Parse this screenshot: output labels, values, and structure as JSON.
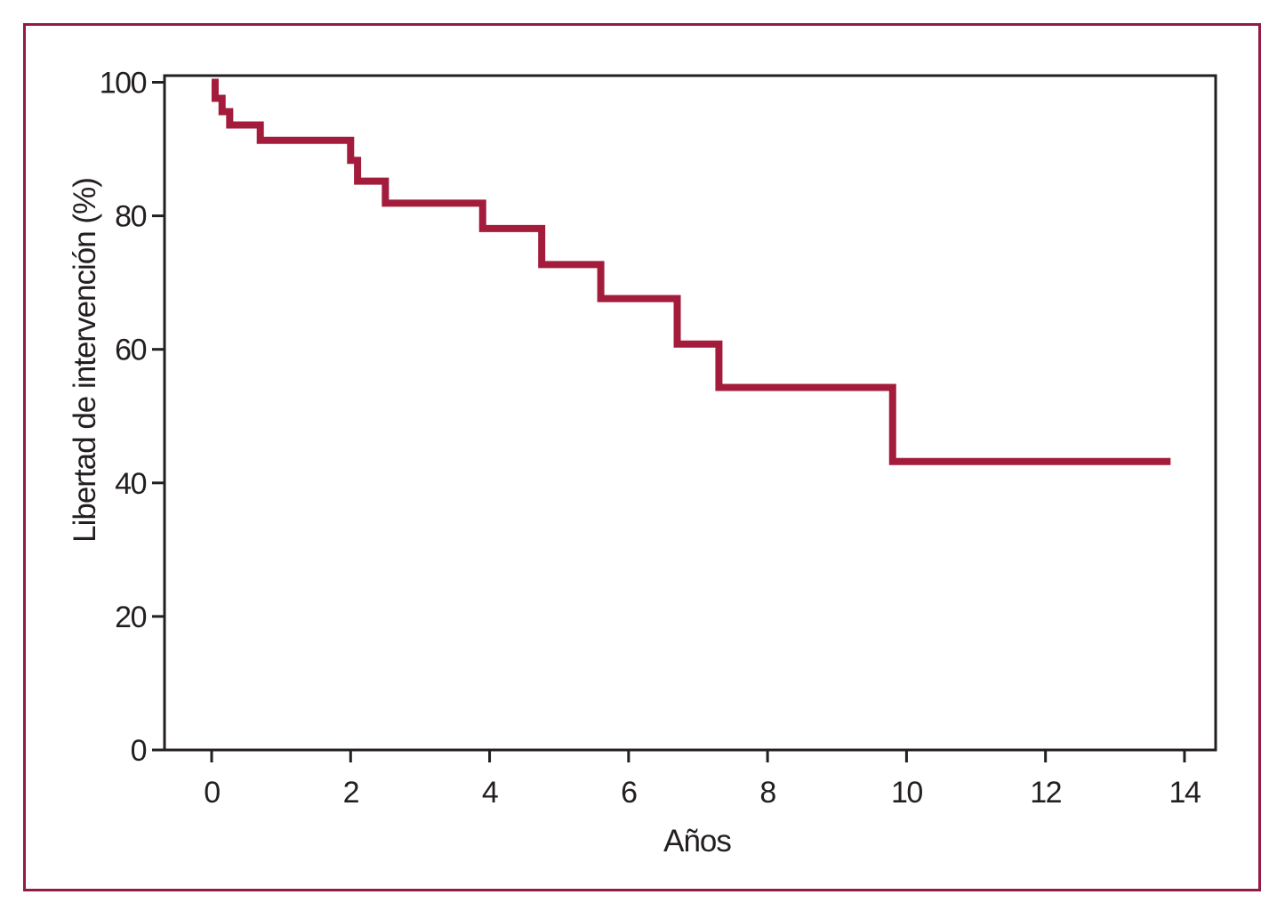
{
  "figure": {
    "frame_color": "#941b44",
    "axis_color": "#231f20",
    "background_color": "#ffffff"
  },
  "chart_data": {
    "type": "line",
    "subtype": "kaplan-meier-step",
    "title": "",
    "xlabel": "Años",
    "ylabel": "Libertad de intervención (%)",
    "xlim": [
      -0.68,
      14.45
    ],
    "ylim": [
      0,
      101
    ],
    "x_ticks": [
      0,
      2,
      4,
      6,
      8,
      10,
      12,
      14
    ],
    "y_ticks": [
      0,
      20,
      40,
      60,
      80,
      100
    ],
    "grid": false,
    "legend_position": "none",
    "line_color": "#a31c3c",
    "series": [
      {
        "name": "Libertad de intervención",
        "start": {
          "t": 0,
          "pct": 100
        },
        "steps": [
          {
            "t": 0.05,
            "pct": 97.6
          },
          {
            "t": 0.15,
            "pct": 95.6
          },
          {
            "t": 0.26,
            "pct": 93.6
          },
          {
            "t": 0.7,
            "pct": 91.3
          },
          {
            "t": 2.0,
            "pct": 88.3
          },
          {
            "t": 2.1,
            "pct": 85.2
          },
          {
            "t": 2.5,
            "pct": 81.9
          },
          {
            "t": 3.9,
            "pct": 78.1
          },
          {
            "t": 4.75,
            "pct": 72.7
          },
          {
            "t": 5.6,
            "pct": 67.6
          },
          {
            "t": 6.7,
            "pct": 60.8
          },
          {
            "t": 7.3,
            "pct": 54.3
          },
          {
            "t": 9.8,
            "pct": 43.2
          }
        ],
        "end_t": 13.8,
        "end_pct": 43.2
      }
    ]
  }
}
